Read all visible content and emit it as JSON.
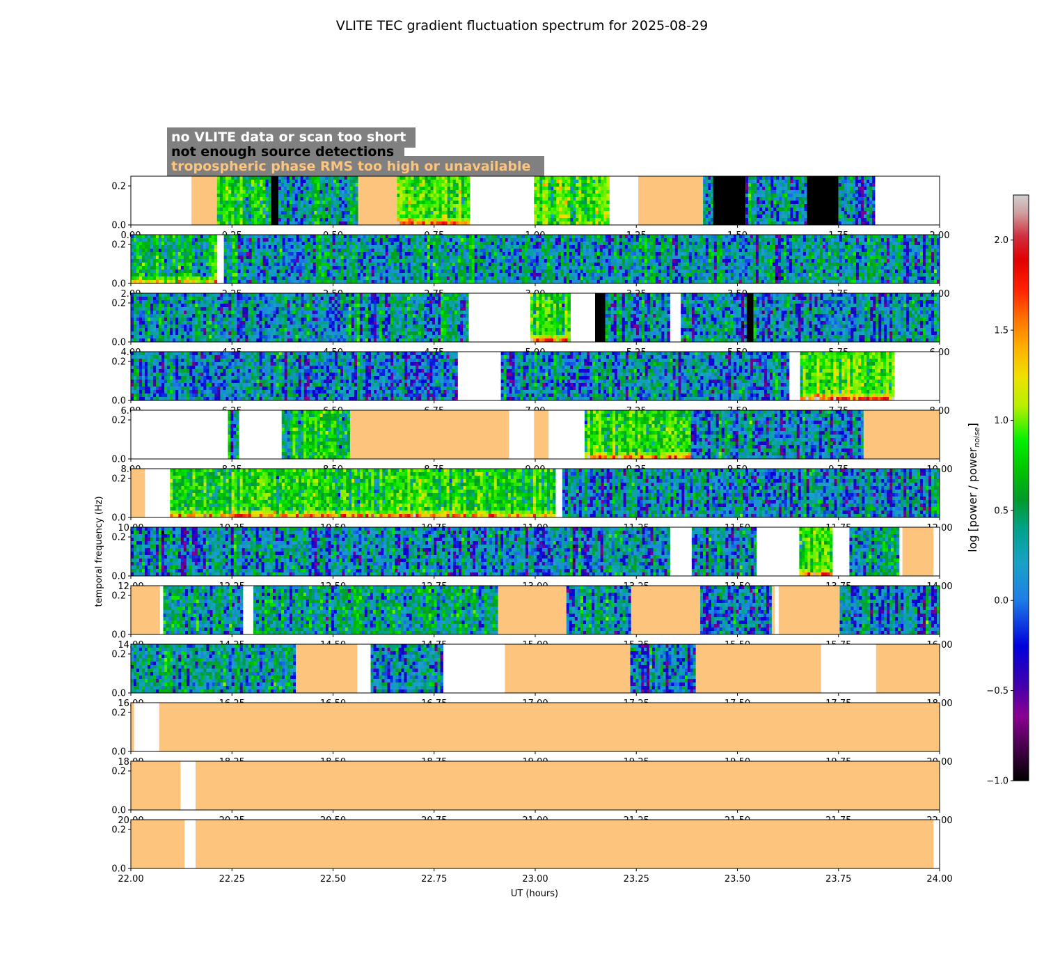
{
  "chart_data": {
    "type": "heatmap",
    "title": "VLITE TEC gradient fluctuation spectrum for 2025-08-29",
    "xlabel": "UT (hours)",
    "ylabel": "temporal frequency (Hz)",
    "ylim": [
      0,
      0.25
    ],
    "y_ticks": [
      "0.0",
      "0.2"
    ],
    "legend": [
      {
        "text": "no VLITE data or scan too short",
        "color": "#ffffff"
      },
      {
        "text": "not enough source detections",
        "color": "#000000"
      },
      {
        "text": "tropospheric phase RMS too high or unavailable",
        "color": "#fdc47d"
      }
    ],
    "colorbar": {
      "label": "log [power / power",
      "label_sub": "noise",
      "label_end": "]",
      "range": [
        -1.0,
        2.25
      ],
      "ticks": [
        "−1.0",
        "−0.5",
        "0.0",
        "0.5",
        "1.0",
        "1.5",
        "2.0"
      ],
      "tick_values": [
        -1.0,
        -0.5,
        0.0,
        0.5,
        1.0,
        1.5,
        2.0
      ]
    },
    "colors": {
      "tropo": "#fdc47d",
      "no_detect": "#000000",
      "no_data": "#ffffff",
      "legend_box": "#808080"
    },
    "panels": [
      {
        "xlim": [
          0,
          2
        ],
        "ticks": [
          "0.00",
          "0.25",
          "0.50",
          "0.75",
          "1.00",
          "1.25",
          "1.50",
          "1.75",
          "2.00"
        ],
        "segments": [
          {
            "s": 0.15,
            "e": 0.213,
            "k": "tropo"
          },
          {
            "s": 0.213,
            "e": 0.347,
            "k": "spec",
            "lvl": 0.6
          },
          {
            "s": 0.347,
            "e": 0.365,
            "k": "black"
          },
          {
            "s": 0.365,
            "e": 0.562,
            "k": "spec",
            "lvl": 0.1
          },
          {
            "s": 0.562,
            "e": 0.658,
            "k": "tropo"
          },
          {
            "s": 0.658,
            "e": 0.838,
            "k": "spec",
            "lvl": 0.9,
            "hot": 0.3
          },
          {
            "s": 0.997,
            "e": 1.183,
            "k": "spec",
            "lvl": 1.0
          },
          {
            "s": 1.255,
            "e": 1.415,
            "k": "tropo"
          },
          {
            "s": 1.415,
            "e": 1.44,
            "k": "spec",
            "lvl": 0
          },
          {
            "s": 1.44,
            "e": 1.52,
            "k": "black"
          },
          {
            "s": 1.52,
            "e": 1.672,
            "k": "spec",
            "lvl": 0
          },
          {
            "s": 1.672,
            "e": 1.75,
            "k": "black"
          },
          {
            "s": 1.75,
            "e": 1.84,
            "k": "spec",
            "lvl": -0.1
          }
        ]
      },
      {
        "xlim": [
          2,
          4
        ],
        "ticks": [
          "2.00",
          "2.25",
          "2.50",
          "2.75",
          "3.00",
          "3.25",
          "3.50",
          "3.75",
          "4.00"
        ],
        "segments": [
          {
            "s": 2.0,
            "e": 2.213,
            "k": "spec",
            "lvl": 0.45,
            "hot": 0.15
          },
          {
            "s": 2.23,
            "e": 4.0,
            "k": "spec",
            "lvl": 0.1
          }
        ]
      },
      {
        "xlim": [
          4,
          6
        ],
        "ticks": [
          "4.00",
          "4.25",
          "4.50",
          "4.75",
          "5.00",
          "5.25",
          "5.50",
          "5.75",
          "6.00"
        ],
        "segments": [
          {
            "s": 4.0,
            "e": 4.835,
            "k": "spec",
            "lvl": 0.1
          },
          {
            "s": 4.988,
            "e": 5.087,
            "k": "spec",
            "lvl": 0.8,
            "hot": 0.35
          },
          {
            "s": 5.148,
            "e": 5.173,
            "k": "black"
          },
          {
            "s": 5.173,
            "e": 5.333,
            "k": "spec",
            "lvl": 0
          },
          {
            "s": 5.36,
            "e": 5.523,
            "k": "spec",
            "lvl": 0
          },
          {
            "s": 5.523,
            "e": 5.54,
            "k": "black"
          },
          {
            "s": 5.54,
            "e": 6.0,
            "k": "spec",
            "lvl": 0
          }
        ]
      },
      {
        "xlim": [
          6,
          8
        ],
        "ticks": [
          "6.00",
          "6.25",
          "6.50",
          "6.75",
          "7.00",
          "7.25",
          "7.50",
          "7.75",
          "8.00"
        ],
        "segments": [
          {
            "s": 6.0,
            "e": 6.808,
            "k": "spec",
            "lvl": -0.05
          },
          {
            "s": 6.915,
            "e": 7.628,
            "k": "spec",
            "lvl": 0
          },
          {
            "s": 7.655,
            "e": 7.888,
            "k": "spec",
            "lvl": 0.9,
            "hot": 0.4
          }
        ]
      },
      {
        "xlim": [
          8,
          10
        ],
        "ticks": [
          "8.00",
          "8.25",
          "8.50",
          "8.75",
          "9.00",
          "9.25",
          "9.50",
          "9.75",
          "10.00"
        ],
        "segments": [
          {
            "s": 8.24,
            "e": 8.267,
            "k": "spec",
            "lvl": 0
          },
          {
            "s": 8.373,
            "e": 8.542,
            "k": "spec",
            "lvl": 0.6
          },
          {
            "s": 8.542,
            "e": 8.935,
            "k": "tropo"
          },
          {
            "s": 8.997,
            "e": 9.033,
            "k": "tropo"
          },
          {
            "s": 9.122,
            "e": 9.385,
            "k": "spec",
            "lvl": 0.8,
            "hot": 0.2
          },
          {
            "s": 9.385,
            "e": 9.812,
            "k": "spec",
            "lvl": 0
          },
          {
            "s": 9.812,
            "e": 10.0,
            "k": "tropo"
          }
        ]
      },
      {
        "xlim": [
          10,
          12
        ],
        "ticks": [
          "10.00",
          "10.25",
          "10.50",
          "10.75",
          "11.00",
          "11.25",
          "11.50",
          "11.75",
          "12.00"
        ],
        "segments": [
          {
            "s": 10.0,
            "e": 10.035,
            "k": "tropo"
          },
          {
            "s": 10.097,
            "e": 11.05,
            "k": "spec",
            "lvl": 0.7,
            "hot": 0.25
          },
          {
            "s": 11.067,
            "e": 12.0,
            "k": "spec",
            "lvl": 0
          }
        ]
      },
      {
        "xlim": [
          12,
          14
        ],
        "ticks": [
          "12.00",
          "12.25",
          "12.50",
          "12.75",
          "13.00",
          "13.25",
          "13.50",
          "13.75",
          "14.00"
        ],
        "segments": [
          {
            "s": 12.0,
            "e": 13.333,
            "k": "spec",
            "lvl": 0
          },
          {
            "s": 13.387,
            "e": 13.547,
            "k": "spec",
            "lvl": 0
          },
          {
            "s": 13.653,
            "e": 13.735,
            "k": "spec",
            "lvl": 0.9,
            "hot": 0.35
          },
          {
            "s": 13.777,
            "e": 13.9,
            "k": "spec",
            "lvl": 0.1
          },
          {
            "s": 13.908,
            "e": 13.985,
            "k": "tropo"
          }
        ]
      },
      {
        "xlim": [
          14,
          16
        ],
        "ticks": [
          "14.00",
          "14.25",
          "14.50",
          "14.75",
          "15.00",
          "15.25",
          "15.50",
          "15.75",
          "16.00"
        ],
        "segments": [
          {
            "s": 14.0,
            "e": 14.072,
            "k": "tropo"
          },
          {
            "s": 14.08,
            "e": 14.277,
            "k": "spec",
            "lvl": 0.1
          },
          {
            "s": 14.303,
            "e": 14.908,
            "k": "spec",
            "lvl": 0.2
          },
          {
            "s": 14.908,
            "e": 15.077,
            "k": "tropo"
          },
          {
            "s": 15.077,
            "e": 15.237,
            "k": "spec",
            "lvl": 0
          },
          {
            "s": 15.237,
            "e": 15.408,
            "k": "tropo"
          },
          {
            "s": 15.408,
            "e": 15.585,
            "k": "spec",
            "lvl": 0
          },
          {
            "s": 15.585,
            "e": 15.592,
            "k": "tropo"
          },
          {
            "s": 15.602,
            "e": 15.753,
            "k": "tropo"
          },
          {
            "s": 15.753,
            "e": 16.0,
            "k": "spec",
            "lvl": 0
          }
        ]
      },
      {
        "xlim": [
          16,
          18
        ],
        "ticks": [
          "16.00",
          "16.25",
          "16.50",
          "16.75",
          "17.00",
          "17.25",
          "17.50",
          "17.75",
          "18.00"
        ],
        "segments": [
          {
            "s": 16.0,
            "e": 16.408,
            "k": "spec",
            "lvl": 0.1
          },
          {
            "s": 16.408,
            "e": 16.56,
            "k": "tropo"
          },
          {
            "s": 16.593,
            "e": 16.772,
            "k": "spec",
            "lvl": 0
          },
          {
            "s": 16.925,
            "e": 17.235,
            "k": "tropo"
          },
          {
            "s": 17.235,
            "e": 17.397,
            "k": "spec",
            "lvl": -0.1
          },
          {
            "s": 17.397,
            "e": 17.707,
            "k": "tropo"
          },
          {
            "s": 17.843,
            "e": 18.0,
            "k": "tropo"
          }
        ]
      },
      {
        "xlim": [
          18,
          20
        ],
        "ticks": [
          "18.00",
          "18.25",
          "18.50",
          "18.75",
          "19.00",
          "19.25",
          "19.50",
          "19.75",
          "20.00"
        ],
        "segments": [
          {
            "s": 18.0,
            "e": 18.008,
            "k": "tropo"
          },
          {
            "s": 18.07,
            "e": 20.0,
            "k": "tropo"
          }
        ]
      },
      {
        "xlim": [
          20,
          22
        ],
        "ticks": [
          "20.00",
          "20.25",
          "20.50",
          "20.75",
          "21.00",
          "21.25",
          "21.50",
          "21.75",
          "22.00"
        ],
        "segments": [
          {
            "s": 20.0,
            "e": 20.123,
            "k": "tropo"
          },
          {
            "s": 20.16,
            "e": 22.0,
            "k": "tropo"
          }
        ]
      },
      {
        "xlim": [
          22,
          24
        ],
        "ticks": [
          "22.00",
          "22.25",
          "22.50",
          "22.75",
          "23.00",
          "23.25",
          "23.50",
          "23.75",
          "24.00"
        ],
        "segments": [
          {
            "s": 22.0,
            "e": 22.133,
            "k": "tropo"
          },
          {
            "s": 22.16,
            "e": 23.985,
            "k": "tropo"
          }
        ]
      }
    ]
  }
}
